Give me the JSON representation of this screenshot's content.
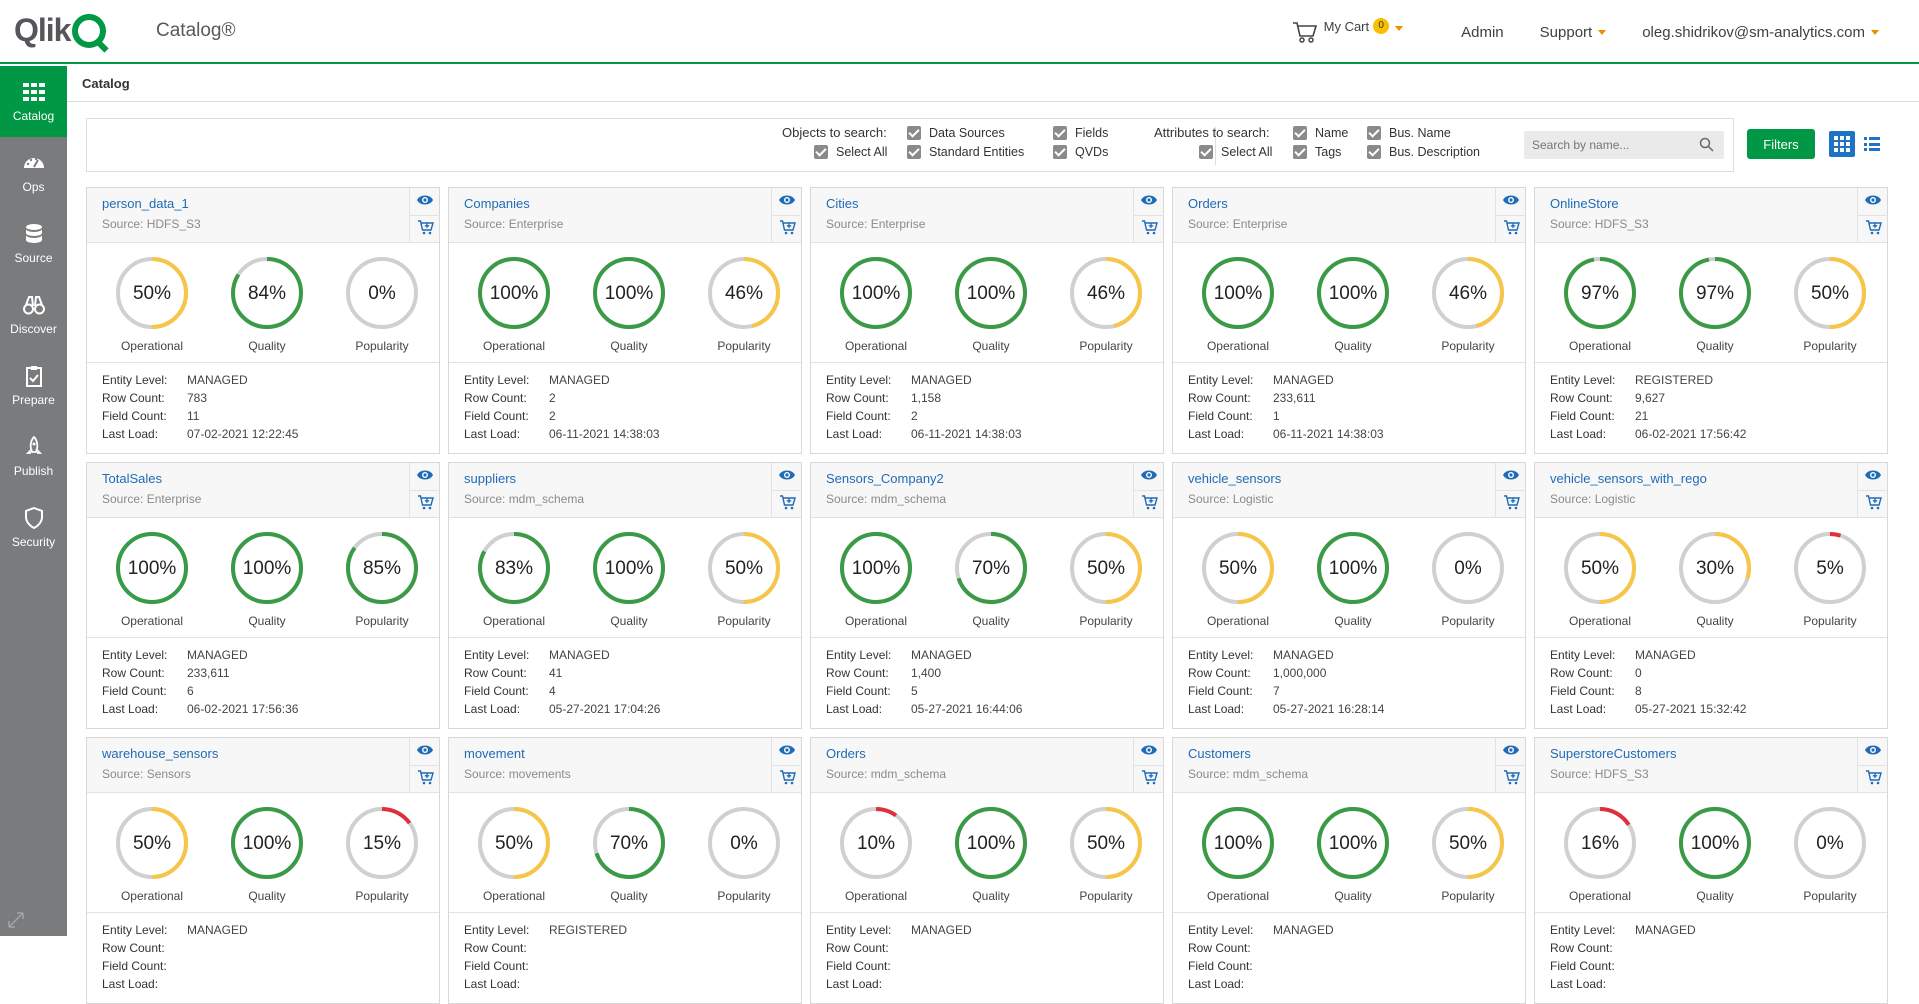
{
  "header": {
    "logo_text": "Qlik",
    "app_title": "Catalog®",
    "cart_label": "My Cart",
    "cart_count": "0",
    "admin": "Admin",
    "support": "Support",
    "user": "oleg.shidrikov@sm-analytics.com"
  },
  "sidebar": {
    "items": [
      {
        "label": "Catalog",
        "icon": "grid-icon",
        "active": true
      },
      {
        "label": "Ops",
        "icon": "gauge-icon"
      },
      {
        "label": "Source",
        "icon": "database-icon"
      },
      {
        "label": "Discover",
        "icon": "binoculars-icon"
      },
      {
        "label": "Prepare",
        "icon": "clipboard-icon"
      },
      {
        "label": "Publish",
        "icon": "rocket-icon"
      },
      {
        "label": "Security",
        "icon": "shield-icon"
      }
    ]
  },
  "breadcrumb": "Catalog",
  "search": {
    "objects_label": "Objects to search:",
    "objects": {
      "select_all": "Select All",
      "data_sources": "Data Sources",
      "standard_entities": "Standard Entities",
      "fields": "Fields",
      "qvds": "QVDs"
    },
    "attributes_label": "Attributes to search:",
    "attributes": {
      "select_all": "Select All",
      "name": "Name",
      "tags": "Tags",
      "bus_name": "Bus. Name",
      "bus_description": "Bus. Description"
    },
    "placeholder": "Search by name...",
    "filters_label": "Filters"
  },
  "detail_labels": {
    "entity_level": "Entity Level:",
    "row_count": "Row Count:",
    "field_count": "Field Count:",
    "last_load": "Last Load:"
  },
  "metric_labels": [
    "Operational",
    "Quality",
    "Popularity"
  ],
  "colors": {
    "green": "#3a9a46",
    "yellow": "#f7c548",
    "red": "#e0303c",
    "track": "#d0d0d0"
  },
  "cards": [
    {
      "name": "person_data_1",
      "source": "Source:  HDFS_S3",
      "metrics": [
        50,
        84,
        0
      ],
      "entity_level": "MANAGED",
      "row_count": "783",
      "field_count": "11",
      "last_load": "07-02-2021 12:22:45"
    },
    {
      "name": "Companies",
      "source": "Source:  Enterprise",
      "metrics": [
        100,
        100,
        46
      ],
      "entity_level": "MANAGED",
      "row_count": "2",
      "field_count": "2",
      "last_load": "06-11-2021 14:38:03"
    },
    {
      "name": "Cities",
      "source": "Source:  Enterprise",
      "metrics": [
        100,
        100,
        46
      ],
      "entity_level": "MANAGED",
      "row_count": "1,158",
      "field_count": "2",
      "last_load": "06-11-2021 14:38:03"
    },
    {
      "name": "Orders",
      "source": "Source:  Enterprise",
      "metrics": [
        100,
        100,
        46
      ],
      "entity_level": "MANAGED",
      "row_count": "233,611",
      "field_count": "1",
      "last_load": "06-11-2021 14:38:03"
    },
    {
      "name": "OnlineStore",
      "source": "Source:  HDFS_S3",
      "metrics": [
        97,
        97,
        50
      ],
      "entity_level": "REGISTERED",
      "row_count": "9,627",
      "field_count": "21",
      "last_load": "06-02-2021 17:56:42"
    },
    {
      "name": "TotalSales",
      "source": "Source:  Enterprise",
      "metrics": [
        100,
        100,
        85
      ],
      "entity_level": "MANAGED",
      "row_count": "233,611",
      "field_count": "6",
      "last_load": "06-02-2021 17:56:36"
    },
    {
      "name": "suppliers",
      "source": "Source:  mdm_schema",
      "metrics": [
        83,
        100,
        50
      ],
      "entity_level": "MANAGED",
      "row_count": "41",
      "field_count": "4",
      "last_load": "05-27-2021 17:04:26"
    },
    {
      "name": "Sensors_Company2",
      "source": "Source:  mdm_schema",
      "metrics": [
        100,
        70,
        50
      ],
      "entity_level": "MANAGED",
      "row_count": "1,400",
      "field_count": "5",
      "last_load": "05-27-2021 16:44:06"
    },
    {
      "name": "vehicle_sensors",
      "source": "Source:  Logistic",
      "metrics": [
        50,
        100,
        0
      ],
      "entity_level": "MANAGED",
      "row_count": "1,000,000",
      "field_count": "7",
      "last_load": "05-27-2021 16:28:14"
    },
    {
      "name": "vehicle_sensors_with_rego",
      "source": "Source:  Logistic",
      "metrics": [
        50,
        30,
        5
      ],
      "entity_level": "MANAGED",
      "row_count": "0",
      "field_count": "8",
      "last_load": "05-27-2021 15:32:42"
    },
    {
      "name": "warehouse_sensors",
      "source": "Source:  Sensors",
      "metrics": [
        50,
        100,
        15
      ],
      "entity_level": "MANAGED",
      "row_count": "",
      "field_count": "",
      "last_load": ""
    },
    {
      "name": "movement",
      "source": "Source:  movements",
      "metrics": [
        50,
        70,
        0
      ],
      "entity_level": "REGISTERED",
      "row_count": "",
      "field_count": "",
      "last_load": ""
    },
    {
      "name": "Orders",
      "source": "Source:  mdm_schema",
      "metrics": [
        10,
        100,
        50
      ],
      "entity_level": "MANAGED",
      "row_count": "",
      "field_count": "",
      "last_load": ""
    },
    {
      "name": "Customers",
      "source": "Source:  mdm_schema",
      "metrics": [
        100,
        100,
        50
      ],
      "entity_level": "MANAGED",
      "row_count": "",
      "field_count": "",
      "last_load": ""
    },
    {
      "name": "SuperstoreCustomers",
      "source": "Source:  HDFS_S3",
      "metrics": [
        16,
        100,
        0
      ],
      "entity_level": "MANAGED",
      "row_count": "",
      "field_count": "",
      "last_load": ""
    }
  ]
}
